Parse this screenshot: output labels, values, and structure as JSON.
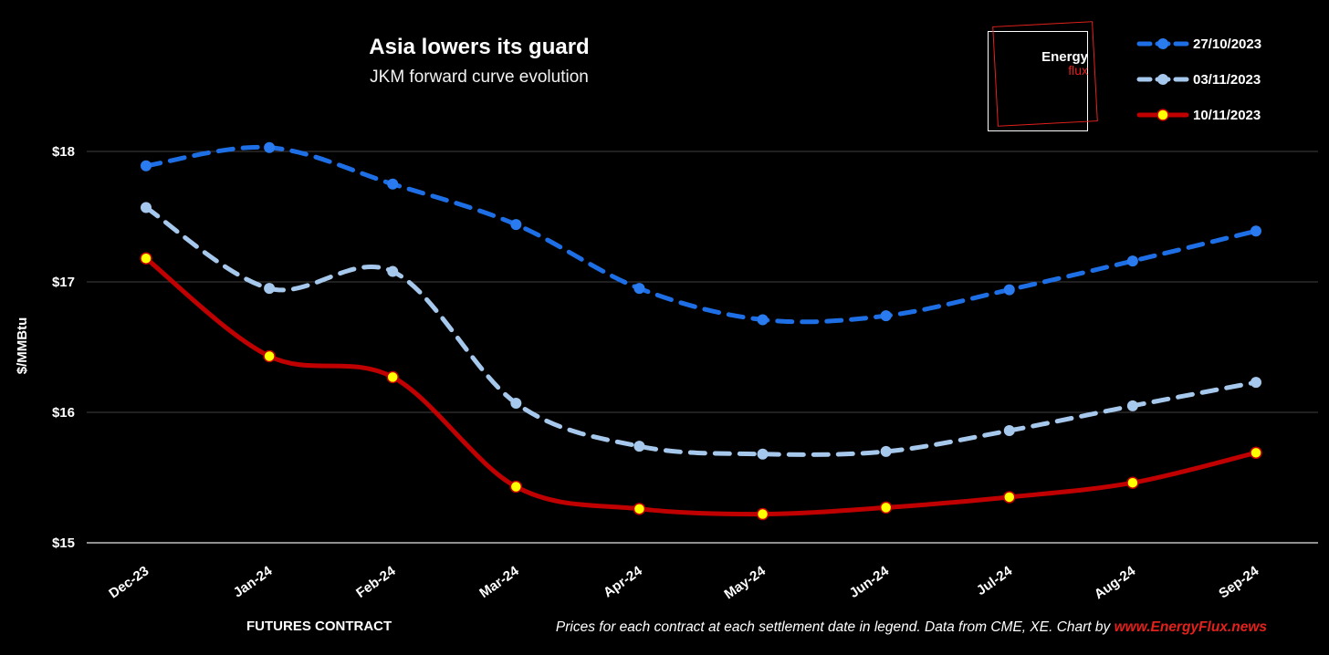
{
  "header": {
    "title": "Asia lowers its guard",
    "subtitle": "JKM forward curve evolution"
  },
  "logo": {
    "line1": "Energy",
    "line2": "flux",
    "colors": {
      "frame": "#ffffff",
      "accent": "#e3211c"
    }
  },
  "footer": {
    "xlabel": "FUTURES CONTRACT",
    "note": "Prices for each contract at each settlement date in legend. Data from CME, XE. Chart by ",
    "link": "www.EnergyFlux.news"
  },
  "chart_data": {
    "type": "line",
    "title": "Asia lowers its guard",
    "subtitle": "JKM forward curve evolution",
    "xlabel": "FUTURES CONTRACT",
    "ylabel": "$/MMBtu",
    "ylim": [
      15,
      18.5
    ],
    "yticks": [
      15,
      16,
      17,
      18
    ],
    "ytick_labels": [
      "$15",
      "$16",
      "$17",
      "$18"
    ],
    "grid": true,
    "legend": "top-right",
    "categories": [
      "Dec-23",
      "Jan-24",
      "Feb-24",
      "Mar-24",
      "Apr-24",
      "May-24",
      "Jun-24",
      "Jul-24",
      "Aug-24",
      "Sep-24"
    ],
    "series": [
      {
        "name": "27/10/2023",
        "color": "#1e6fe6",
        "marker": "#2a7bef",
        "style": "dashed",
        "values": [
          17.89,
          18.03,
          17.75,
          17.44,
          16.95,
          16.71,
          16.74,
          16.94,
          17.16,
          17.39
        ]
      },
      {
        "name": "03/11/2023",
        "color": "#a6c8ec",
        "marker": "#a6c8ec",
        "style": "dashed",
        "values": [
          17.57,
          16.95,
          17.08,
          16.07,
          15.74,
          15.68,
          15.7,
          15.86,
          16.05,
          16.23
        ]
      },
      {
        "name": "10/11/2023",
        "color": "#c00000",
        "marker": "#ffff00",
        "style": "solid",
        "values": [
          17.18,
          16.43,
          16.27,
          15.43,
          15.26,
          15.22,
          15.27,
          15.35,
          15.46,
          15.69
        ]
      }
    ]
  }
}
